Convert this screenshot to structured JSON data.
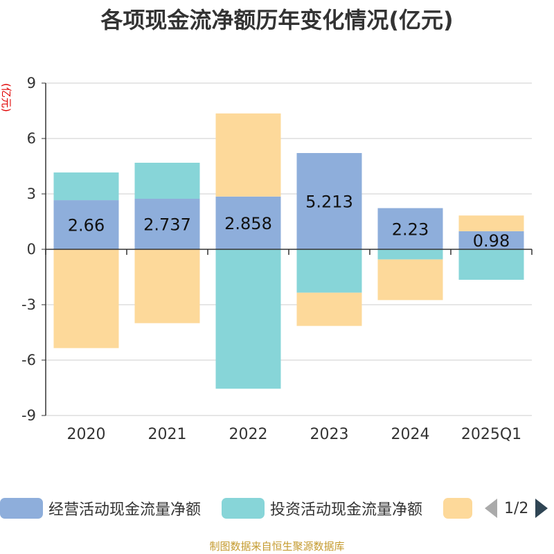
{
  "chart_data": {
    "type": "bar",
    "stacked": true,
    "title": "各项现金流净额历年变化情况(亿元)",
    "ylabel": "(亿元)",
    "ylim": [
      -9,
      9
    ],
    "yticks": [
      9,
      6,
      3,
      0,
      -3,
      -6,
      -9
    ],
    "categories": [
      "2020",
      "2021",
      "2022",
      "2023",
      "2024",
      "2025Q1"
    ],
    "series": [
      {
        "name": "经营活动现金流量净额",
        "color": "#8eaedb",
        "values": [
          2.66,
          2.737,
          2.858,
          5.213,
          2.23,
          0.98
        ]
      },
      {
        "name": "投资活动现金流量净额",
        "color": "#87d5d8",
        "values": [
          1.5,
          1.95,
          -7.55,
          -2.35,
          -0.55,
          -1.65
        ]
      },
      {
        "name": "",
        "color": "#fdd99a",
        "values": [
          -5.35,
          -4.0,
          4.5,
          -1.8,
          -2.2,
          0.85
        ]
      }
    ],
    "data_labels": [
      "2.66",
      "2.737",
      "2.858",
      "5.213",
      "2.23",
      "0.98"
    ],
    "grid": true,
    "legend_position": "bottom"
  },
  "legend": {
    "items": [
      {
        "label": "经营活动现金流量净额",
        "color": "#8eaedb"
      },
      {
        "label": "投资活动现金流量净额",
        "color": "#87d5d8"
      },
      {
        "label": "",
        "color": "#fdd99a"
      }
    ],
    "page": "1/2"
  },
  "footer": {
    "source": "制图数据来自恒生聚源数据库"
  }
}
